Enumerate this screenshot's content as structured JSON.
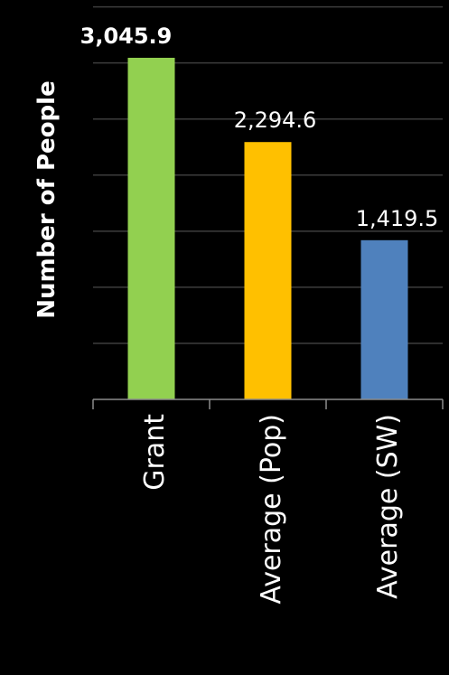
{
  "chart_data": {
    "type": "bar",
    "ylabel": "Number of People",
    "xlabel": "",
    "categories": [
      "Grant",
      "Average (Pop)",
      "Average (SW)"
    ],
    "values": [
      3045.9,
      2294.6,
      1419.5
    ],
    "data_labels": [
      "3,045.9",
      "2,294.6",
      "1,419.5"
    ],
    "bar_colors": [
      "#92d050",
      "#ffc000",
      "#4f81bd"
    ],
    "label_bold": [
      true,
      false,
      false
    ],
    "ylim": [
      0,
      3500
    ],
    "grid": true,
    "legend": "none"
  }
}
